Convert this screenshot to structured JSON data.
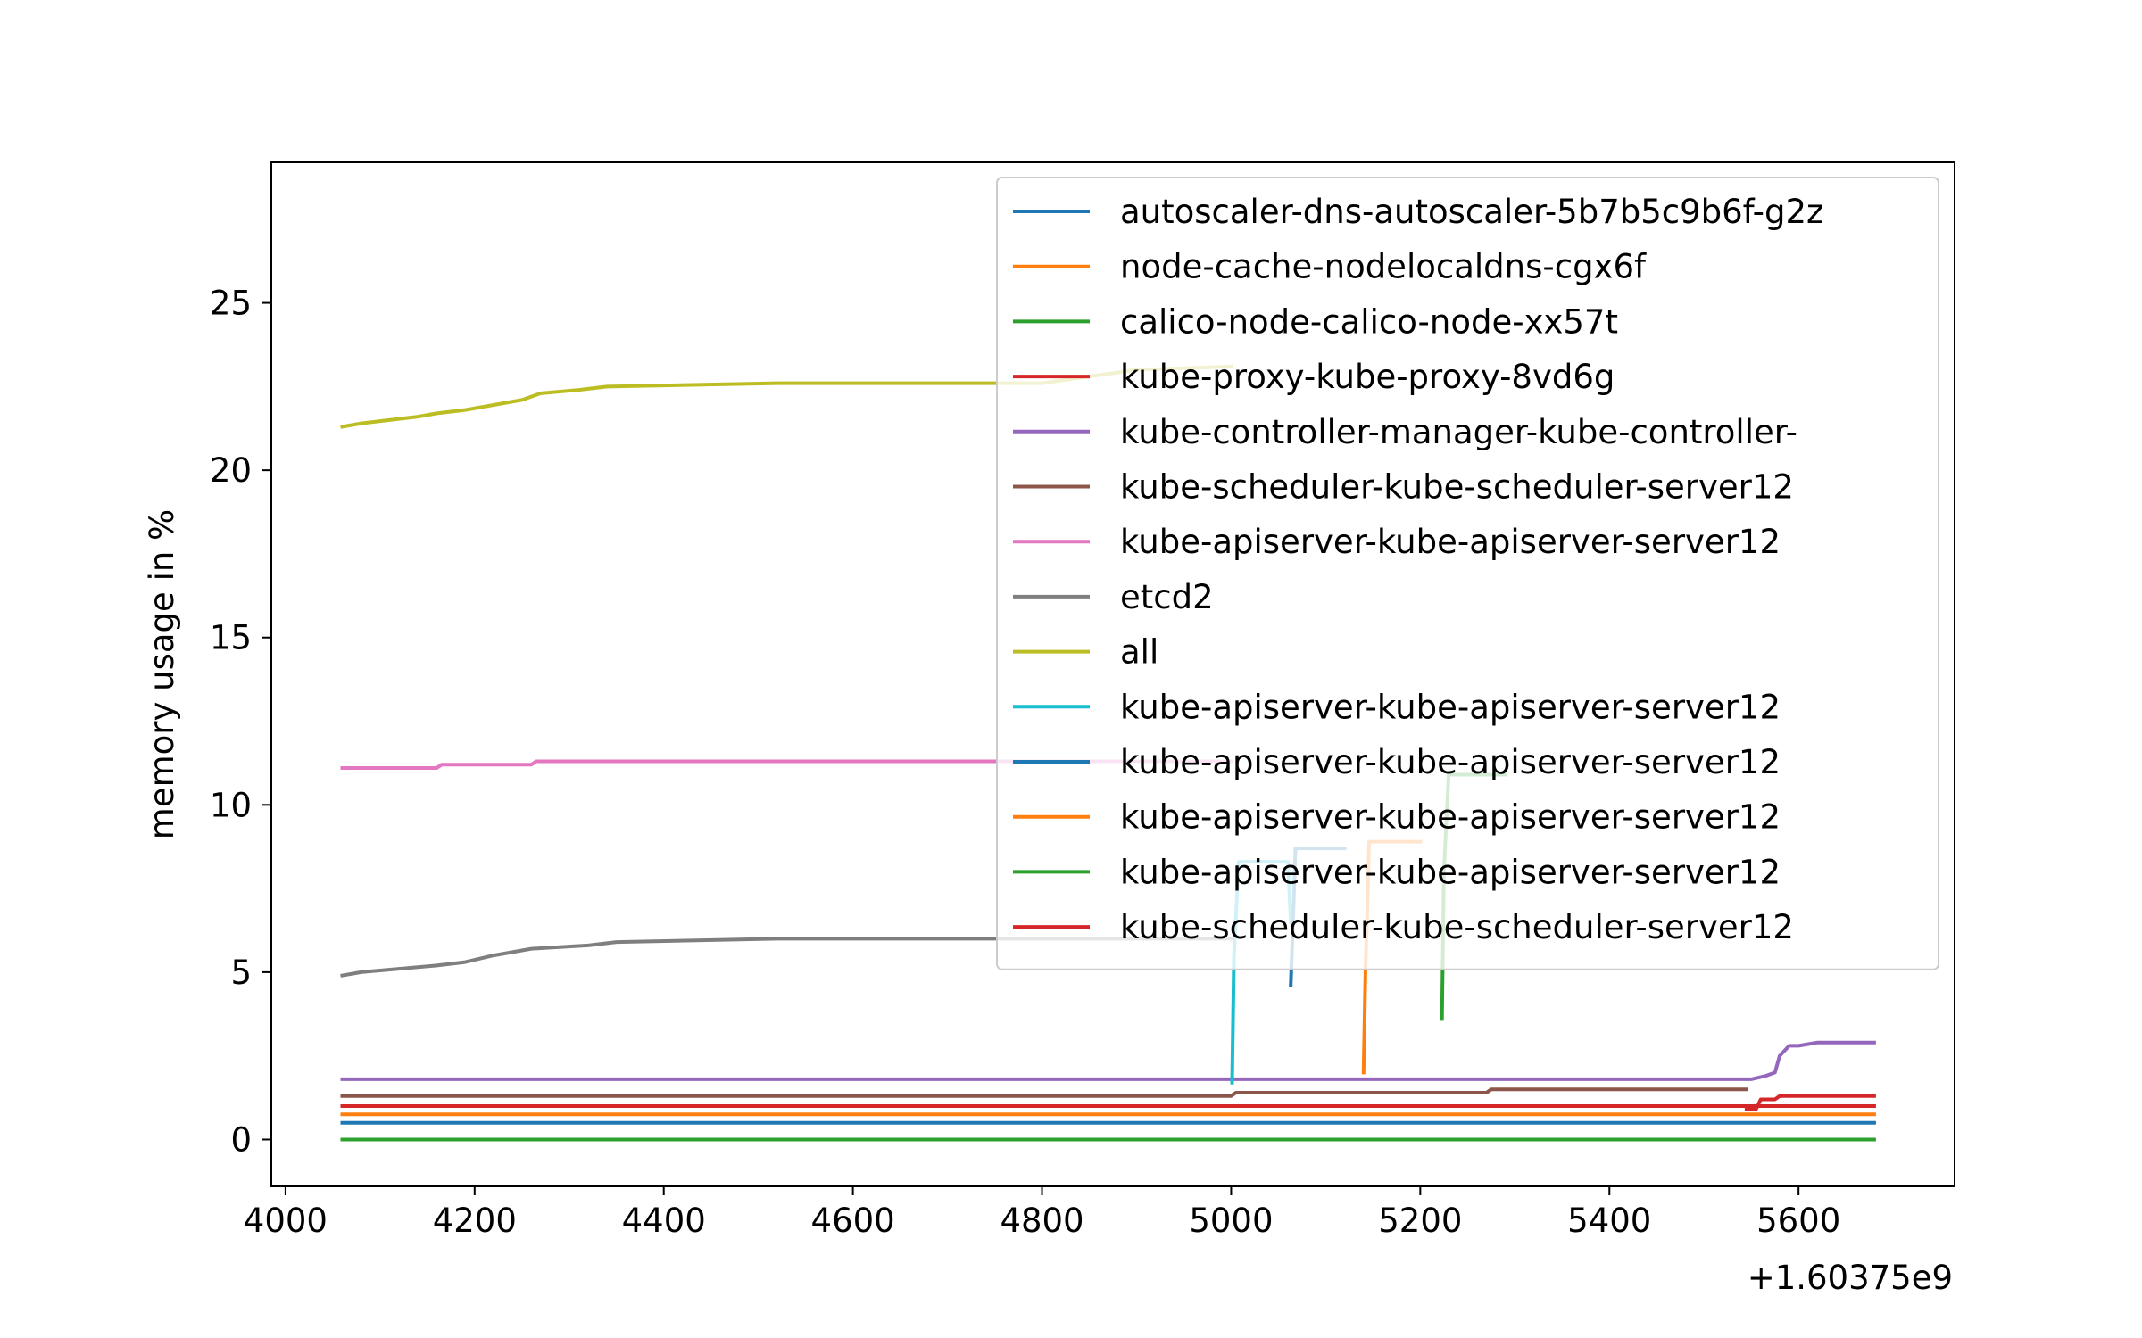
{
  "chart_data": {
    "type": "line",
    "title": "",
    "xlabel": "",
    "ylabel": "memory usage in %",
    "x_offset_label": "+1.60375e9",
    "xlim": [
      3985,
      5765
    ],
    "ylim": [
      -1.4,
      29.2
    ],
    "xticks": [
      4000,
      4200,
      4400,
      4600,
      4800,
      5000,
      5200,
      5400,
      5600
    ],
    "xtick_labels": [
      "4000",
      "4200",
      "4400",
      "4600",
      "4800",
      "5000",
      "5200",
      "5400",
      "5600"
    ],
    "yticks": [
      0,
      5,
      10,
      15,
      20,
      25
    ],
    "ytick_labels": [
      "0",
      "5",
      "10",
      "15",
      "20",
      "25"
    ],
    "grid": false,
    "legend_position": "top-right",
    "series": [
      {
        "name": "autoscaler-dns-autoscaler-5b7b5c9b6f-g2z",
        "color": "#1f77b4",
        "x": [
          4060,
          5680
        ],
        "y": [
          0.5,
          0.5
        ]
      },
      {
        "name": "node-cache-nodelocaldns-cgx6f",
        "color": "#ff7f0e",
        "x": [
          4060,
          5680
        ],
        "y": [
          0.75,
          0.75
        ]
      },
      {
        "name": "calico-node-calico-node-xx57t",
        "color": "#2ca02c",
        "x": [
          4060,
          5680
        ],
        "y": [
          0.0,
          0.0
        ]
      },
      {
        "name": "kube-proxy-kube-proxy-8vd6g",
        "color": "#d62728",
        "x": [
          4060,
          5680
        ],
        "y": [
          1.0,
          1.0
        ]
      },
      {
        "name": "kube-controller-manager-kube-controller-",
        "color": "#9467bd",
        "x": [
          4060,
          5550,
          5565,
          5575,
          5580,
          5590,
          5600,
          5620,
          5680
        ],
        "y": [
          1.8,
          1.8,
          1.9,
          2.0,
          2.5,
          2.8,
          2.8,
          2.9,
          2.9
        ]
      },
      {
        "name": "kube-scheduler-kube-scheduler-server12",
        "color": "#8c564b",
        "x": [
          4060,
          5000,
          5005,
          5270,
          5275,
          5545
        ],
        "y": [
          1.3,
          1.3,
          1.4,
          1.4,
          1.5,
          1.5
        ]
      },
      {
        "name": "kube-apiserver-kube-apiserver-server12",
        "color": "#e377c2",
        "x": [
          4060,
          4160,
          4165,
          4260,
          4265,
          5000
        ],
        "y": [
          11.1,
          11.1,
          11.2,
          11.2,
          11.3,
          11.3
        ]
      },
      {
        "name": "etcd2",
        "color": "#7f7f7f",
        "x": [
          4060,
          4080,
          4120,
          4160,
          4190,
          4220,
          4240,
          4260,
          4320,
          4350,
          4520,
          5000
        ],
        "y": [
          4.9,
          5.0,
          5.1,
          5.2,
          5.3,
          5.5,
          5.6,
          5.7,
          5.8,
          5.9,
          6.0,
          6.0
        ]
      },
      {
        "name": "all",
        "color": "#bcbd22",
        "x": [
          4060,
          4080,
          4110,
          4140,
          4160,
          4190,
          4210,
          4230,
          4250,
          4270,
          4310,
          4340,
          4520,
          4800,
          4900,
          5000
        ],
        "y": [
          21.3,
          21.4,
          21.5,
          21.6,
          21.7,
          21.8,
          21.9,
          22.0,
          22.1,
          22.3,
          22.4,
          22.5,
          22.6,
          22.6,
          23.0,
          23.1
        ]
      },
      {
        "name": "kube-apiserver-kube-apiserver-server12",
        "color": "#17becf",
        "x": [
          5001,
          5003,
          5008,
          5060,
          5063
        ],
        "y": [
          1.7,
          5.5,
          8.3,
          8.3,
          6.5
        ]
      },
      {
        "name": "kube-apiserver-kube-apiserver-server12",
        "color": "#1f77b4",
        "x": [
          5063,
          5066,
          5068,
          5120
        ],
        "y": [
          4.6,
          7.0,
          8.7,
          8.7
        ]
      },
      {
        "name": "kube-apiserver-kube-apiserver-server12",
        "color": "#ff7f0e",
        "x": [
          5140,
          5142,
          5146,
          5200
        ],
        "y": [
          2.0,
          5.0,
          8.9,
          8.9
        ]
      },
      {
        "name": "kube-apiserver-kube-apiserver-server12",
        "color": "#2ca02c",
        "x": [
          5223,
          5225,
          5230,
          5290
        ],
        "y": [
          3.6,
          8.0,
          10.9,
          10.9
        ]
      },
      {
        "name": "kube-scheduler-kube-scheduler-server12",
        "color": "#d62728",
        "x": [
          5545,
          5555,
          5560,
          5575,
          5580,
          5680
        ],
        "y": [
          0.9,
          0.9,
          1.2,
          1.2,
          1.3,
          1.3
        ]
      }
    ]
  }
}
